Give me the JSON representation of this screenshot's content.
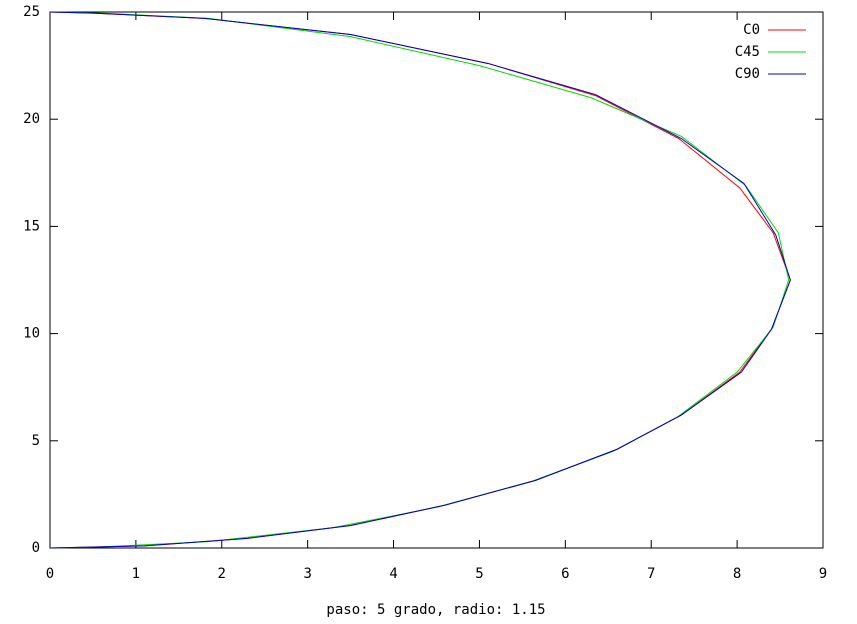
{
  "chart_data": {
    "type": "line",
    "xlabel": "paso: 5 grado, radio: 1.15",
    "xlim": [
      0,
      9
    ],
    "xticks": [
      0,
      1,
      2,
      3,
      4,
      5,
      6,
      7,
      8,
      9
    ],
    "ylim": [
      0,
      25
    ],
    "yticks": [
      0,
      5,
      10,
      15,
      20,
      25
    ],
    "legend": "top-right",
    "series": [
      {
        "name": "C0",
        "color": "#ff0000",
        "x": [
          0,
          1.1,
          2.3,
          3.5,
          4.6,
          5.65,
          6.6,
          7.35,
          8.03,
          8.4,
          8.62,
          8.42,
          8.03,
          7.32,
          6.35,
          5.1,
          3.5,
          1.8,
          0.5,
          0
        ],
        "values": [
          0,
          0.1,
          0.45,
          1.05,
          2.0,
          3.15,
          4.6,
          6.2,
          8.2,
          10.2,
          12.5,
          14.7,
          16.8,
          19.1,
          21.1,
          22.6,
          23.95,
          24.7,
          24.95,
          25
        ]
      },
      {
        "name": "C45",
        "color": "#00dd00",
        "x": [
          0,
          0.6,
          1.85,
          3.3,
          4.5,
          5.6,
          6.55,
          7.3,
          8.0,
          8.42,
          8.6,
          8.48,
          8.1,
          7.35,
          6.3,
          5.0,
          3.5,
          1.85,
          0.6,
          0
        ],
        "values": [
          0,
          0.05,
          0.3,
          0.95,
          1.9,
          3.1,
          4.5,
          6.1,
          8.2,
          10.3,
          12.5,
          14.7,
          16.9,
          19.2,
          21.0,
          22.5,
          23.85,
          24.7,
          24.95,
          25
        ]
      },
      {
        "name": "C90",
        "color": "#0000cc",
        "x": [
          0,
          1.1,
          2.3,
          3.5,
          4.6,
          5.65,
          6.6,
          7.35,
          8.05,
          8.4,
          8.62,
          8.45,
          8.08,
          7.35,
          6.35,
          5.1,
          3.5,
          1.8,
          0.5,
          0
        ],
        "values": [
          0,
          0.1,
          0.45,
          1.05,
          2.0,
          3.15,
          4.6,
          6.2,
          8.2,
          10.2,
          12.5,
          14.6,
          17.0,
          19.1,
          21.15,
          22.6,
          23.95,
          24.7,
          24.95,
          25
        ]
      }
    ]
  }
}
